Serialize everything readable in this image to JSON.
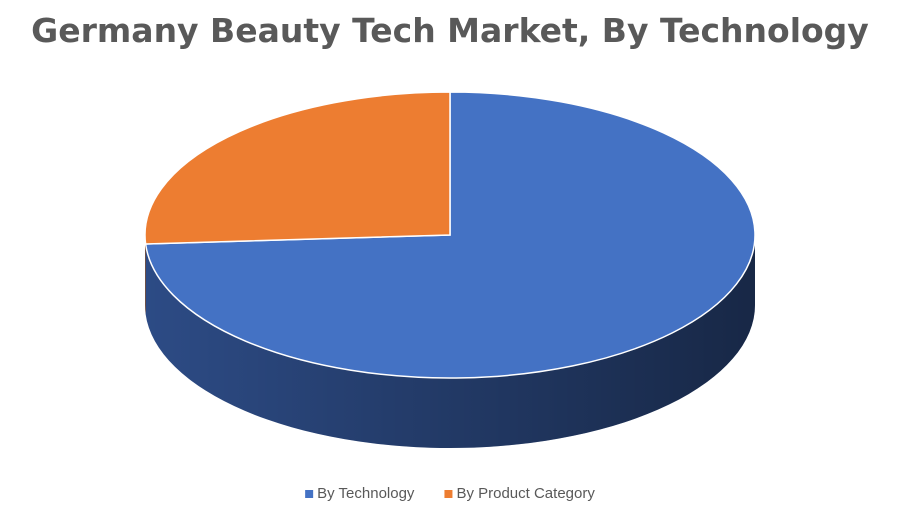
{
  "chart_data": {
    "type": "pie",
    "title": "Germany Beauty Tech Market, By Technology",
    "categories": [
      "By Technology",
      "By Product Category"
    ],
    "values": [
      74,
      26
    ],
    "colors": [
      "#4472c4",
      "#ed7d31"
    ],
    "side_colors": [
      "#2f4f8c",
      "#a5551f"
    ],
    "legend": "bottom"
  }
}
